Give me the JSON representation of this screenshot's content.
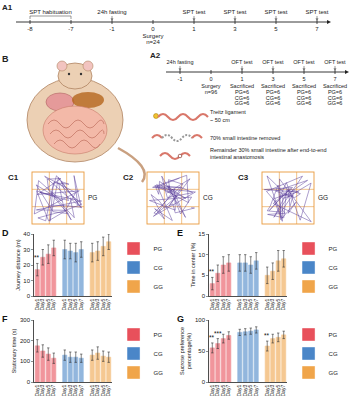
{
  "timelines": [
    {
      "label": "A1",
      "ticks": [
        -8,
        -7,
        -1,
        0,
        1,
        3,
        5,
        7
      ],
      "above": [
        {
          "at": [
            -8,
            -7
          ],
          "text": "SPT habituation"
        },
        {
          "at": [
            -1
          ],
          "text": "24h fasting"
        },
        {
          "at": [
            1
          ],
          "text": "SPT test"
        },
        {
          "at": [
            3
          ],
          "text": "SPT test"
        },
        {
          "at": [
            5
          ],
          "text": "SPT test"
        },
        {
          "at": [
            7
          ],
          "text": "SPT test"
        }
      ],
      "below": [
        {
          "at": [
            0
          ],
          "lines": [
            "Surgery",
            "n=24"
          ]
        }
      ]
    },
    {
      "label": "A2",
      "ticks": [
        -1,
        0,
        1,
        3,
        5,
        7
      ],
      "above": [
        {
          "at": [
            -1
          ],
          "text": "24h fasting"
        },
        {
          "at": [
            1
          ],
          "text": "OFT test"
        },
        {
          "at": [
            3
          ],
          "text": "OFT test"
        },
        {
          "at": [
            5
          ],
          "text": "OFT test"
        },
        {
          "at": [
            7
          ],
          "text": "OFT test"
        }
      ],
      "below": [
        {
          "at": [
            0
          ],
          "lines": [
            "Surgery",
            "n=96"
          ]
        },
        {
          "at": [
            1
          ],
          "lines": [
            "Sacrificed",
            "PG=6",
            "CG=6",
            "GG=6"
          ]
        },
        {
          "at": [
            3
          ],
          "lines": [
            "Sacrificed",
            "PG=6",
            "CG=6",
            "GG=6"
          ]
        },
        {
          "at": [
            5
          ],
          "lines": [
            "Sacrificed",
            "PG=6",
            "CG=6",
            "GG=6"
          ]
        },
        {
          "at": [
            7
          ],
          "lines": [
            "Sacrificed",
            "PG=6",
            "CG=6",
            "GG=6"
          ]
        }
      ]
    }
  ],
  "illustration": {
    "label": "B",
    "notes": [
      "Treitz ligament",
      "~ 50 cm",
      "70% small intestine removed",
      "Remainder 30% small intestine after end-to-end intestinal anastomosis"
    ]
  },
  "trajectories": [
    {
      "label": "C1",
      "group": "PG"
    },
    {
      "label": "C2",
      "group": "CG"
    },
    {
      "label": "C3",
      "group": "GG"
    }
  ],
  "chart_data": [
    {
      "type": "bar",
      "title": "D",
      "y_label": "Journey distance (m)",
      "grid": false,
      "legend": "right",
      "categories": [
        "Day1",
        "Day3",
        "Day5",
        "Day7",
        null,
        "Day1",
        "Day3",
        "Day5",
        "Day7",
        null,
        "Day1",
        "Day3",
        "Day5",
        "Day7"
      ],
      "ylim": [
        0,
        40
      ],
      "yticks": [
        0,
        10,
        20,
        30,
        40
      ],
      "series": [
        {
          "name": "PG",
          "color": "#e8505b",
          "values": [
            17,
            25,
            27,
            31,
            null,
            null,
            null,
            null,
            null,
            null,
            null,
            null,
            null,
            null
          ],
          "errors": [
            4,
            5,
            6,
            5,
            null,
            null,
            null,
            null,
            null,
            null,
            null,
            null,
            null,
            null
          ]
        },
        {
          "name": "CG",
          "color": "#4a86c8",
          "values": [
            null,
            null,
            null,
            null,
            null,
            30,
            29,
            28,
            30,
            null,
            null,
            null,
            null,
            null
          ],
          "errors": [
            null,
            null,
            null,
            null,
            null,
            6,
            5,
            6,
            5,
            null,
            null,
            null,
            null,
            null
          ]
        },
        {
          "name": "GG",
          "color": "#f0a54a",
          "values": [
            null,
            null,
            null,
            null,
            null,
            null,
            null,
            null,
            null,
            null,
            28,
            29,
            32,
            35
          ],
          "errors": [
            null,
            null,
            null,
            null,
            null,
            null,
            null,
            null,
            null,
            null,
            6,
            6,
            6,
            5
          ]
        }
      ],
      "annotations": [
        {
          "x": 0,
          "text": "**"
        }
      ]
    },
    {
      "type": "bar",
      "title": "E",
      "y_label": "Time in center (%)",
      "grid": false,
      "legend": "right",
      "categories": [
        "Day1",
        "Day3",
        "Day5",
        "Day7",
        null,
        "Day1",
        "Day3",
        "Day5",
        "Day7",
        null,
        "Day1",
        "Day3",
        "Day5",
        "Day7"
      ],
      "ylim": [
        0,
        15
      ],
      "yticks": [
        0,
        5,
        10,
        15
      ],
      "series": [
        {
          "name": "PG",
          "color": "#e8505b",
          "values": [
            3,
            5.5,
            7.5,
            8,
            null,
            null,
            null,
            null,
            null,
            null,
            null,
            null,
            null,
            null
          ],
          "errors": [
            1.5,
            2,
            2,
            2,
            null,
            null,
            null,
            null,
            null,
            null,
            null,
            null,
            null,
            null
          ]
        },
        {
          "name": "CG",
          "color": "#4a86c8",
          "values": [
            null,
            null,
            null,
            null,
            null,
            8,
            8,
            7.5,
            8.5,
            null,
            null,
            null,
            null,
            null
          ],
          "errors": [
            null,
            null,
            null,
            null,
            null,
            2,
            2,
            2,
            2,
            null,
            null,
            null,
            null,
            null
          ]
        },
        {
          "name": "GG",
          "color": "#f0a54a",
          "values": [
            null,
            null,
            null,
            null,
            null,
            null,
            null,
            null,
            null,
            null,
            5,
            6,
            8.5,
            9
          ],
          "errors": [
            null,
            null,
            null,
            null,
            null,
            null,
            null,
            null,
            null,
            null,
            2,
            2,
            2.5,
            2
          ]
        }
      ],
      "annotations": [
        {
          "x": 0,
          "text": "**"
        }
      ]
    },
    {
      "type": "bar",
      "title": "F",
      "y_label": "Stationary time (s)",
      "grid": false,
      "legend": "right",
      "categories": [
        "Day1",
        "Day3",
        "Day5",
        "Day7",
        null,
        "Day1",
        "Day3",
        "Day5",
        "Day7",
        null,
        "Day1",
        "Day3",
        "Day5",
        "Day7"
      ],
      "ylim": [
        0,
        300
      ],
      "yticks": [
        0,
        100,
        200,
        300
      ],
      "series": [
        {
          "name": "PG",
          "color": "#e8505b",
          "values": [
            175,
            150,
            135,
            115,
            null,
            null,
            null,
            null,
            null,
            null,
            null,
            null,
            null,
            null
          ],
          "errors": [
            30,
            30,
            30,
            25,
            null,
            null,
            null,
            null,
            null,
            null,
            null,
            null,
            null,
            null
          ]
        },
        {
          "name": "CG",
          "color": "#4a86c8",
          "values": [
            null,
            null,
            null,
            null,
            null,
            130,
            120,
            120,
            115,
            null,
            null,
            null,
            null,
            null
          ],
          "errors": [
            null,
            null,
            null,
            null,
            null,
            25,
            25,
            25,
            20,
            null,
            null,
            null,
            null,
            null
          ]
        },
        {
          "name": "GG",
          "color": "#f0a54a",
          "values": [
            null,
            null,
            null,
            null,
            null,
            null,
            null,
            null,
            null,
            null,
            130,
            140,
            125,
            120
          ],
          "errors": [
            null,
            null,
            null,
            null,
            null,
            null,
            null,
            null,
            null,
            null,
            25,
            30,
            25,
            25
          ]
        }
      ],
      "annotations": []
    },
    {
      "type": "bar",
      "title": "G",
      "y_label": "Sucrose preference percentage(%)",
      "grid": false,
      "legend": "right",
      "categories": [
        "Day1",
        "Day3",
        "Day5",
        "Day7",
        null,
        "Day1",
        "Day3",
        "Day5",
        "Day7",
        null,
        "Day1",
        "Day3",
        "Day5",
        "Day7"
      ],
      "ylim": [
        0,
        100
      ],
      "yticks": [
        0,
        50,
        100
      ],
      "series": [
        {
          "name": "PG",
          "color": "#e8505b",
          "values": [
            55,
            62,
            70,
            75,
            null,
            null,
            null,
            null,
            null,
            null,
            null,
            null,
            null,
            null
          ],
          "errors": [
            8,
            8,
            7,
            6,
            null,
            null,
            null,
            null,
            null,
            null,
            null,
            null,
            null,
            null
          ]
        },
        {
          "name": "CG",
          "color": "#4a86c8",
          "values": [
            null,
            null,
            null,
            null,
            null,
            80,
            81,
            82,
            84,
            null,
            null,
            null,
            null,
            null
          ],
          "errors": [
            null,
            null,
            null,
            null,
            null,
            5,
            5,
            5,
            5,
            null,
            null,
            null,
            null,
            null
          ]
        },
        {
          "name": "GG",
          "color": "#f0a54a",
          "values": [
            null,
            null,
            null,
            null,
            null,
            null,
            null,
            null,
            null,
            null,
            58,
            70,
            72,
            76
          ],
          "errors": [
            null,
            null,
            null,
            null,
            null,
            null,
            null,
            null,
            null,
            null,
            8,
            7,
            7,
            6
          ]
        }
      ],
      "annotations": [
        {
          "x": 0,
          "text": "**"
        },
        {
          "x": 1,
          "text": "***"
        },
        {
          "x": 10,
          "text": "**"
        }
      ]
    }
  ]
}
